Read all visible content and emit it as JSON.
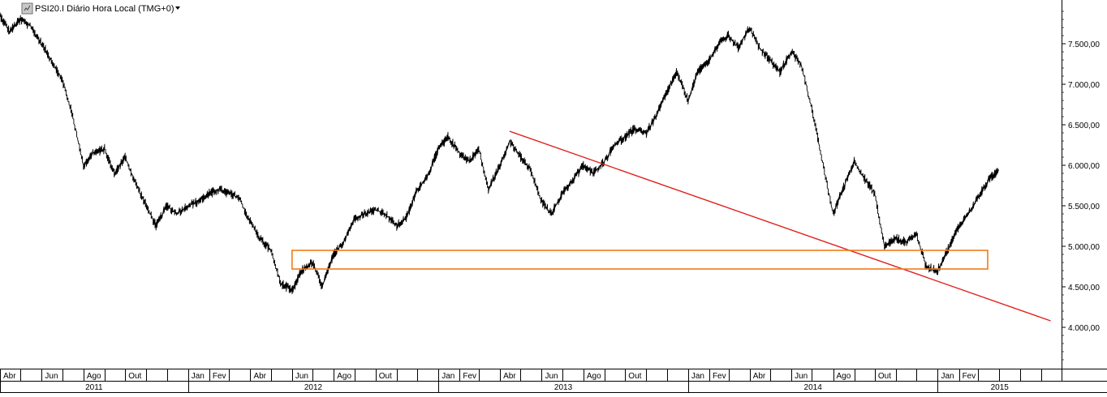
{
  "header": {
    "symbol_icon": "chart-symbol-icon",
    "title": "PSI20.I Diário Hora Local (TMG+0)",
    "dropdown_icon": "dropdown-arrow-icon"
  },
  "chart_data": {
    "type": "line",
    "title": "PSI20.I Diário Hora Local (TMG+0)",
    "xlabel": "",
    "ylabel": "",
    "x_range": [
      "2011-04-01",
      "2015-07-01"
    ],
    "ylim": [
      3400,
      7920
    ],
    "grid": false,
    "y_ticks": [
      {
        "value": 4000,
        "label": "4.000,00"
      },
      {
        "value": 4500,
        "label": "4.500,00"
      },
      {
        "value": 5000,
        "label": "5.000,00"
      },
      {
        "value": 5500,
        "label": "5.500,00"
      },
      {
        "value": 6000,
        "label": "6.000,00"
      },
      {
        "value": 6500,
        "label": "6.500,00"
      },
      {
        "value": 7000,
        "label": "7.000,00"
      },
      {
        "value": 7500,
        "label": "7.500,00"
      }
    ],
    "month_labels": [
      {
        "date": "2011-04-01",
        "label": "Abr"
      },
      {
        "date": "2011-06-01",
        "label": "Jun"
      },
      {
        "date": "2011-08-01",
        "label": "Ago"
      },
      {
        "date": "2011-10-01",
        "label": "Out"
      },
      {
        "date": "2012-01-01",
        "label": "Jan"
      },
      {
        "date": "2012-02-01",
        "label": "Fev"
      },
      {
        "date": "2012-04-01",
        "label": "Abr"
      },
      {
        "date": "2012-06-01",
        "label": "Jun"
      },
      {
        "date": "2012-08-01",
        "label": "Ago"
      },
      {
        "date": "2012-10-01",
        "label": "Out"
      },
      {
        "date": "2013-01-01",
        "label": "Jan"
      },
      {
        "date": "2013-02-01",
        "label": "Fev"
      },
      {
        "date": "2013-04-01",
        "label": "Abr"
      },
      {
        "date": "2013-06-01",
        "label": "Jun"
      },
      {
        "date": "2013-08-01",
        "label": "Ago"
      },
      {
        "date": "2013-10-01",
        "label": "Out"
      },
      {
        "date": "2014-01-01",
        "label": "Jan"
      },
      {
        "date": "2014-02-01",
        "label": "Fev"
      },
      {
        "date": "2014-04-01",
        "label": "Abr"
      },
      {
        "date": "2014-06-01",
        "label": "Jun"
      },
      {
        "date": "2014-08-01",
        "label": "Ago"
      },
      {
        "date": "2014-10-01",
        "label": "Out"
      },
      {
        "date": "2015-01-01",
        "label": "Jan"
      },
      {
        "date": "2015-02-01",
        "label": "Fev"
      }
    ],
    "year_labels": [
      {
        "year": "2011",
        "start": "2011-04-01",
        "end": "2012-01-01"
      },
      {
        "year": "2012",
        "start": "2012-01-01",
        "end": "2013-01-01"
      },
      {
        "year": "2013",
        "start": "2013-01-01",
        "end": "2014-01-01"
      },
      {
        "year": "2014",
        "start": "2014-01-01",
        "end": "2015-01-01"
      },
      {
        "year": "2015",
        "start": "2015-01-01",
        "end": "2015-07-01"
      }
    ],
    "series": [
      {
        "color": "#000000",
        "points": [
          [
            "2011-04-01",
            7850
          ],
          [
            "2011-04-15",
            7650
          ],
          [
            "2011-05-01",
            7800
          ],
          [
            "2011-05-15",
            7720
          ],
          [
            "2011-06-01",
            7500
          ],
          [
            "2011-06-15",
            7300
          ],
          [
            "2011-07-01",
            7050
          ],
          [
            "2011-07-15",
            6650
          ],
          [
            "2011-08-01",
            6000
          ],
          [
            "2011-08-15",
            6150
          ],
          [
            "2011-09-01",
            6200
          ],
          [
            "2011-09-15",
            5900
          ],
          [
            "2011-10-01",
            6100
          ],
          [
            "2011-10-15",
            5800
          ],
          [
            "2011-11-01",
            5500
          ],
          [
            "2011-11-15",
            5250
          ],
          [
            "2011-12-01",
            5500
          ],
          [
            "2011-12-15",
            5400
          ],
          [
            "2012-01-01",
            5500
          ],
          [
            "2012-01-15",
            5550
          ],
          [
            "2012-02-01",
            5650
          ],
          [
            "2012-02-15",
            5700
          ],
          [
            "2012-03-01",
            5650
          ],
          [
            "2012-03-15",
            5600
          ],
          [
            "2012-04-01",
            5300
          ],
          [
            "2012-04-15",
            5100
          ],
          [
            "2012-05-01",
            4950
          ],
          [
            "2012-05-15",
            4550
          ],
          [
            "2012-06-01",
            4450
          ],
          [
            "2012-06-15",
            4700
          ],
          [
            "2012-07-01",
            4800
          ],
          [
            "2012-07-15",
            4500
          ],
          [
            "2012-08-01",
            4900
          ],
          [
            "2012-08-15",
            5050
          ],
          [
            "2012-09-01",
            5350
          ],
          [
            "2012-09-15",
            5400
          ],
          [
            "2012-10-01",
            5450
          ],
          [
            "2012-10-15",
            5400
          ],
          [
            "2012-11-01",
            5250
          ],
          [
            "2012-11-15",
            5350
          ],
          [
            "2012-12-01",
            5700
          ],
          [
            "2012-12-15",
            5850
          ],
          [
            "2013-01-01",
            6200
          ],
          [
            "2013-01-15",
            6350
          ],
          [
            "2013-02-01",
            6150
          ],
          [
            "2013-02-15",
            6050
          ],
          [
            "2013-03-01",
            6200
          ],
          [
            "2013-03-15",
            5700
          ],
          [
            "2013-04-01",
            6000
          ],
          [
            "2013-04-15",
            6300
          ],
          [
            "2013-05-01",
            6100
          ],
          [
            "2013-05-15",
            5950
          ],
          [
            "2013-06-01",
            5550
          ],
          [
            "2013-06-15",
            5400
          ],
          [
            "2013-07-01",
            5650
          ],
          [
            "2013-07-15",
            5800
          ],
          [
            "2013-08-01",
            6000
          ],
          [
            "2013-08-15",
            5900
          ],
          [
            "2013-09-01",
            6050
          ],
          [
            "2013-09-15",
            6250
          ],
          [
            "2013-10-01",
            6350
          ],
          [
            "2013-10-15",
            6450
          ],
          [
            "2013-11-01",
            6400
          ],
          [
            "2013-11-15",
            6600
          ],
          [
            "2013-12-01",
            6900
          ],
          [
            "2013-12-15",
            7150
          ],
          [
            "2014-01-01",
            6800
          ],
          [
            "2014-01-15",
            7150
          ],
          [
            "2014-02-01",
            7300
          ],
          [
            "2014-02-15",
            7500
          ],
          [
            "2014-03-01",
            7600
          ],
          [
            "2014-03-15",
            7450
          ],
          [
            "2014-04-01",
            7700
          ],
          [
            "2014-04-15",
            7450
          ],
          [
            "2014-05-01",
            7300
          ],
          [
            "2014-05-15",
            7150
          ],
          [
            "2014-06-01",
            7400
          ],
          [
            "2014-06-15",
            7250
          ],
          [
            "2014-07-01",
            6700
          ],
          [
            "2014-07-15",
            6100
          ],
          [
            "2014-08-01",
            5400
          ],
          [
            "2014-08-15",
            5700
          ],
          [
            "2014-09-01",
            6050
          ],
          [
            "2014-09-15",
            5850
          ],
          [
            "2014-10-01",
            5650
          ],
          [
            "2014-10-15",
            5000
          ],
          [
            "2014-11-01",
            5100
          ],
          [
            "2014-11-15",
            5050
          ],
          [
            "2014-12-01",
            5150
          ],
          [
            "2014-12-15",
            4750
          ],
          [
            "2015-01-01",
            4700
          ],
          [
            "2015-01-15",
            4950
          ],
          [
            "2015-02-01",
            5250
          ],
          [
            "2015-02-15",
            5400
          ],
          [
            "2015-03-01",
            5600
          ],
          [
            "2015-03-15",
            5800
          ],
          [
            "2015-03-31",
            5950
          ]
        ]
      }
    ],
    "annotations": [
      {
        "type": "trendline",
        "color": "#e0201c",
        "from": [
          "2013-04-15",
          6420
        ],
        "to": [
          "2015-06-15",
          4080
        ]
      },
      {
        "type": "rectangle",
        "color": "#f07b1a",
        "from": [
          "2012-06-01",
          4950
        ],
        "to": [
          "2015-03-15",
          4720
        ]
      }
    ]
  }
}
